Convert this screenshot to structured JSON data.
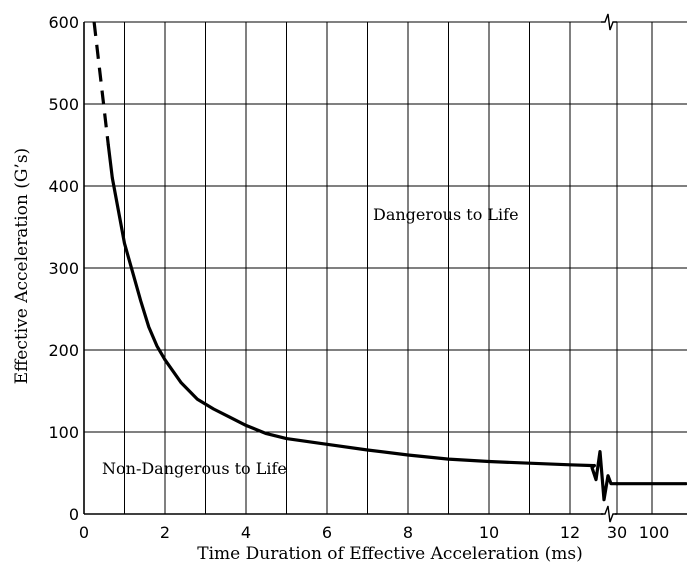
{
  "chart_data": {
    "type": "line",
    "xlabel": "Time Duration of Effective Acceleration (ms)",
    "ylabel": "Effective Acceleration (G’s)",
    "ylim": [
      0,
      600
    ],
    "x_ticks": [
      "0",
      "2",
      "4",
      "6",
      "8",
      "10",
      "12",
      "30",
      "100"
    ],
    "y_ticks": [
      "0",
      "100",
      "200",
      "300",
      "400",
      "500",
      "600"
    ],
    "axis_break": "between 12 and 30 ms",
    "grid": true,
    "series": [
      {
        "style": "solid",
        "points": [
          {
            "x": 0.6,
            "y": 450
          },
          {
            "x": 0.7,
            "y": 410
          },
          {
            "x": 0.85,
            "y": 370
          },
          {
            "x": 1.0,
            "y": 330
          },
          {
            "x": 1.2,
            "y": 295
          },
          {
            "x": 1.4,
            "y": 260
          },
          {
            "x": 1.6,
            "y": 228
          },
          {
            "x": 1.8,
            "y": 205
          },
          {
            "x": 2.0,
            "y": 188
          },
          {
            "x": 2.4,
            "y": 160
          },
          {
            "x": 2.8,
            "y": 140
          },
          {
            "x": 3.2,
            "y": 128
          },
          {
            "x": 3.6,
            "y": 118
          },
          {
            "x": 4.0,
            "y": 108
          },
          {
            "x": 4.5,
            "y": 98
          },
          {
            "x": 5.0,
            "y": 92
          },
          {
            "x": 6.0,
            "y": 85
          },
          {
            "x": 7.0,
            "y": 78
          },
          {
            "x": 8.0,
            "y": 72
          },
          {
            "x": 9.0,
            "y": 67
          },
          {
            "x": 10.0,
            "y": 64
          },
          {
            "x": 11.0,
            "y": 62
          },
          {
            "x": 12.0,
            "y": 60
          },
          {
            "x": 12.6,
            "y": 59
          }
        ]
      },
      {
        "style": "dashed",
        "points": [
          {
            "x": 0.25,
            "y": 600
          },
          {
            "x": 0.6,
            "y": 450
          }
        ]
      },
      {
        "style": "solid",
        "points": [
          {
            "x": 30,
            "y": 37
          },
          {
            "x": 100,
            "y": 37
          },
          {
            "x": 200,
            "y": 37
          }
        ]
      }
    ],
    "annotations": [
      {
        "text": "Dangerous to Life",
        "x": 9.0,
        "y": 360
      },
      {
        "text": "Non-Dangerous to Life",
        "x": 2.6,
        "y": 55
      }
    ]
  }
}
